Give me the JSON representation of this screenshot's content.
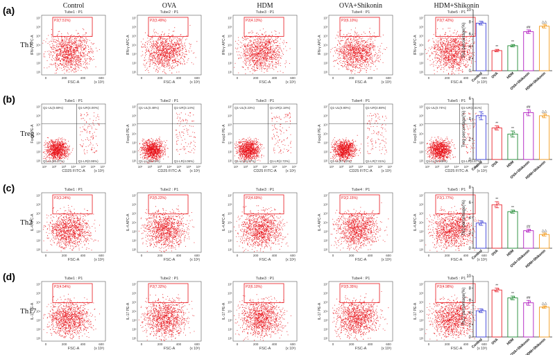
{
  "groups": [
    "Control",
    "OVA",
    "HDM",
    "OVA+Shikonin",
    "HDM+Shikonin"
  ],
  "tube_labels": [
    "Tube1 : P1",
    "Tube2 : P1",
    "Tube3 : P1",
    "Tube4 : P1",
    "Tube5 : P1"
  ],
  "x_unit": "(x 10³)",
  "colors": {
    "dots": "#e8141b",
    "gate": "#e8141b",
    "quad_lines": "#444444",
    "bar_series": [
      "#3b3fd6",
      "#e8202a",
      "#1f8a33",
      "#b01ac0",
      "#f29a1d"
    ]
  },
  "panels": [
    {
      "letter": "(a)",
      "row_label": "Th1",
      "gate_type": "rect",
      "x_axis_label": "FSC-A",
      "y_axis_label": "IFN-γ APC-A",
      "x_ticks": [
        "0",
        "200",
        "400",
        "600"
      ],
      "y_ticks": [
        "10¹",
        "10²",
        "10³",
        "10⁴",
        "10⁵",
        "10⁶",
        "10⁷"
      ],
      "gate_percent": [
        "P2(7.51%)",
        "P2(3.49%)",
        "P2(4.13%)",
        "P2(6.10%)",
        "P2(7.42%)"
      ],
      "chart_data": {
        "type": "bar",
        "categories": [
          "Control",
          "OVA",
          "HDM",
          "OVA+Shikonin",
          "HDM+Shikonin"
        ],
        "values": [
          7.8,
          3.3,
          4.1,
          6.4,
          7.3
        ],
        "errors": [
          0.3,
          0.2,
          0.2,
          0.3,
          0.3
        ],
        "significance": [
          "",
          "**",
          "**",
          "##",
          "△△"
        ],
        "ylabel": "Th1 percentage(%)",
        "ylim": [
          0,
          10
        ],
        "yticks": [
          "0",
          "2",
          "4",
          "6",
          "8",
          "10"
        ]
      }
    },
    {
      "letter": "(b)",
      "row_label": "Treg",
      "gate_type": "quad",
      "x_axis_label": "CD25 FITC-A",
      "y_axis_label": "Foxp3 PE-A",
      "x_ticks": [
        "10¹",
        "10²",
        "10³",
        "10⁴",
        "10⁵",
        "10⁶",
        "10⁷"
      ],
      "y_ticks": [
        "10¹",
        "10²",
        "10³",
        "10⁴",
        "10⁵",
        "10⁶",
        "10⁷"
      ],
      "quadrants": [
        {
          "ul": "Q1-UL(0.69%)",
          "ur": "Q1-UR(4.00%)",
          "ll": "Q1-LL(95.07%)",
          "lr": "Q1-LR(0.95%)"
        },
        {
          "ul": "Q1-UL(0.48%)",
          "ur": "Q1-UR(3.14%)",
          "ll": "Q1-LL(92.31%)",
          "lr": "Q1-LR(4.06%)"
        },
        {
          "ul": "Q1-UL(0.23%)",
          "ur": "Q1-UR(2.18%)",
          "ll": "Q1-LL(94.87%)",
          "lr": "Q1-LR(2.72%)"
        },
        {
          "ul": "Q1-UL(0.80%)",
          "ur": "Q1-UR(4.88%)",
          "ll": "Q1-LL(87.22%)",
          "lr": "Q1-LR(7.01%)"
        },
        {
          "ul": "Q1-UL(0.74%)",
          "ur": "Q1-UR(4.51%)",
          "ll": "Q1-LL(87.88%)",
          "lr": "Q1-LR(6.87%)"
        }
      ],
      "chart_data": {
        "type": "bar",
        "categories": [
          "Control",
          "OVA",
          "HDM",
          "OVA+Shikonin",
          "HDM+Shikonin"
        ],
        "values": [
          4.3,
          3.1,
          2.5,
          4.6,
          4.3
        ],
        "errors": [
          0.4,
          0.2,
          0.3,
          0.3,
          0.2
        ],
        "significance": [
          "",
          "**",
          "**",
          "##",
          "△△"
        ],
        "ylabel": "Treg percentage(%)",
        "ylim": [
          0,
          6
        ],
        "yticks": [
          "0",
          "2",
          "4",
          "6"
        ]
      }
    },
    {
      "letter": "(c)",
      "row_label": "Th2",
      "gate_type": "rect",
      "x_axis_label": "FSC-A",
      "y_axis_label": "IL-4 APC-A",
      "x_ticks": [
        "0",
        "200",
        "400",
        "600"
      ],
      "y_ticks": [
        "10¹",
        "10²",
        "10³",
        "10⁴",
        "10⁵",
        "10⁶",
        "10⁷"
      ],
      "gate_percent": [
        "P2(3.24%)",
        "P2(5.22%)",
        "P2(4.69%)",
        "P2(2.15%)",
        "P2(1.77%)"
      ],
      "chart_data": {
        "type": "bar",
        "categories": [
          "Control",
          "OVA",
          "HDM",
          "OVA+Shikonin",
          "HDM+Shikonin"
        ],
        "values": [
          3.3,
          5.7,
          4.8,
          2.3,
          1.8
        ],
        "errors": [
          0.3,
          0.4,
          0.2,
          0.2,
          0.2
        ],
        "significance": [
          "",
          "**",
          "**",
          "##",
          "△△"
        ],
        "ylabel": "Th2 percentage(%)",
        "ylim": [
          0,
          8
        ],
        "yticks": [
          "0",
          "2",
          "4",
          "6",
          "8"
        ]
      }
    },
    {
      "letter": "(d)",
      "row_label": "Th17",
      "gate_type": "rect",
      "x_axis_label": "FSC-A",
      "y_axis_label": "IL-17 PE-A",
      "x_ticks": [
        "0",
        "200",
        "400",
        "600"
      ],
      "y_ticks": [
        "10¹",
        "10²",
        "10³",
        "10⁴",
        "10⁵",
        "10⁶",
        "10⁷"
      ],
      "gate_percent": [
        "P2(4.54%)",
        "P2(7.32%)",
        "P2(6.10%)",
        "P2(5.35%)",
        "P2(4.98%)"
      ],
      "chart_data": {
        "type": "bar",
        "categories": [
          "Control",
          "OVA",
          "HDM",
          "OVA+Shikonin",
          "HDM+Shikonin"
        ],
        "values": [
          4.3,
          7.7,
          6.4,
          5.6,
          4.9
        ],
        "errors": [
          0.3,
          0.3,
          0.3,
          0.4,
          0.2
        ],
        "significance": [
          "",
          "**",
          "**",
          "##",
          "△△"
        ],
        "ylabel": "Th17 percentage(%)",
        "ylim": [
          0,
          10
        ],
        "yticks": [
          "0",
          "2",
          "4",
          "6",
          "8",
          "10"
        ]
      }
    }
  ]
}
